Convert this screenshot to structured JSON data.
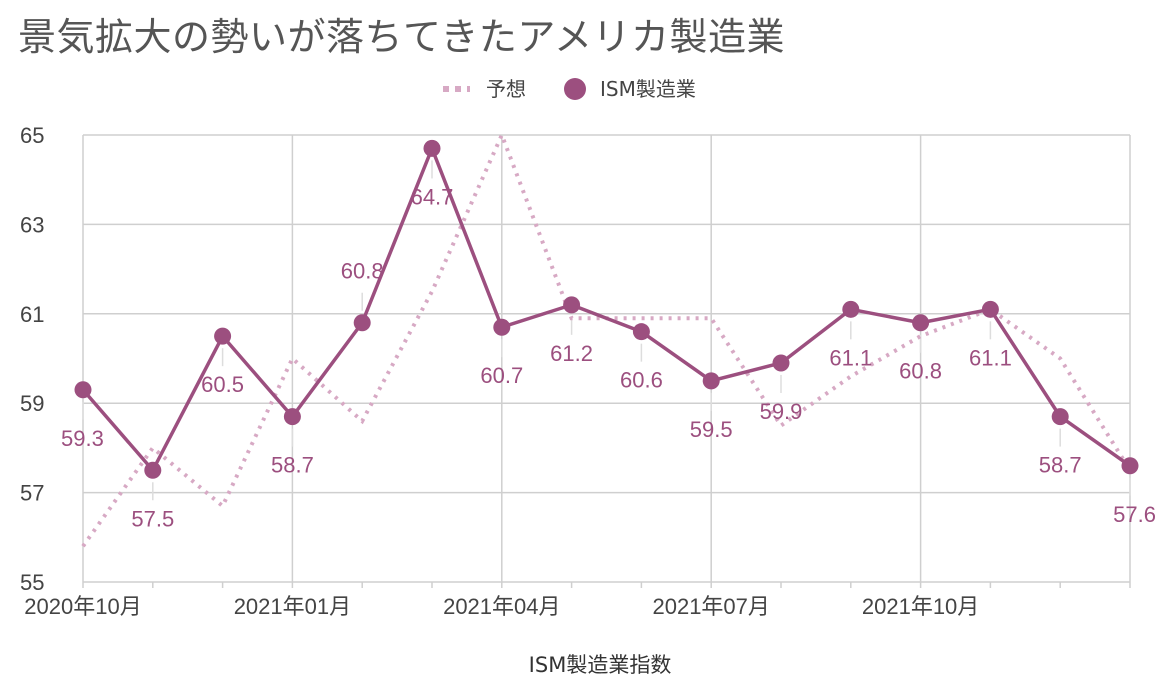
{
  "title": "景気拡大の勢いが落ちてきたアメリカ製造業",
  "colors": {
    "actual": "#9c4f7f",
    "forecast": "#d7a9c4",
    "grid": "#cfcfcf",
    "leader": "#dddddd"
  },
  "chart_data": {
    "type": "line",
    "title": "景気拡大の勢いが落ちてきたアメリカ製造業",
    "xlabel": "ISM製造業指数",
    "ylabel": "",
    "ylim": [
      55,
      65
    ],
    "yticks": [
      "55",
      "57",
      "59",
      "61",
      "63",
      "65"
    ],
    "grid": true,
    "legend_position": "top",
    "x": [
      "2020年10月",
      "2020年11月",
      "2020年12月",
      "2021年01月",
      "2021年02月",
      "2021年03月",
      "2021年04月",
      "2021年05月",
      "2021年06月",
      "2021年07月",
      "2021年08月",
      "2021年09月",
      "2021年10月",
      "2021年11月",
      "2021年12月",
      "2022年01月"
    ],
    "xtick_labels": [
      "2020年10月",
      "2021年01月",
      "2021年04月",
      "2021年07月",
      "2021年10月"
    ],
    "series": [
      {
        "name": "予想",
        "style": "dotted",
        "values": [
          55.8,
          58.0,
          56.7,
          60.0,
          58.6,
          61.5,
          65.0,
          60.9,
          60.9,
          60.9,
          58.5,
          59.6,
          60.5,
          61.1,
          60.0,
          57.5
        ]
      },
      {
        "name": "ISM製造業",
        "style": "line-marker",
        "values": [
          59.3,
          57.5,
          60.5,
          58.7,
          60.8,
          64.7,
          60.7,
          61.2,
          60.6,
          59.5,
          59.9,
          61.1,
          60.8,
          61.1,
          58.7,
          57.6
        ],
        "labels": [
          "59.3",
          "57.5",
          "60.5",
          "58.7",
          "60.8",
          "64.7",
          "60.7",
          "61.2",
          "60.6",
          "59.5",
          "59.9",
          "61.1",
          "60.8",
          "61.1",
          "58.7",
          "57.6"
        ]
      }
    ]
  }
}
